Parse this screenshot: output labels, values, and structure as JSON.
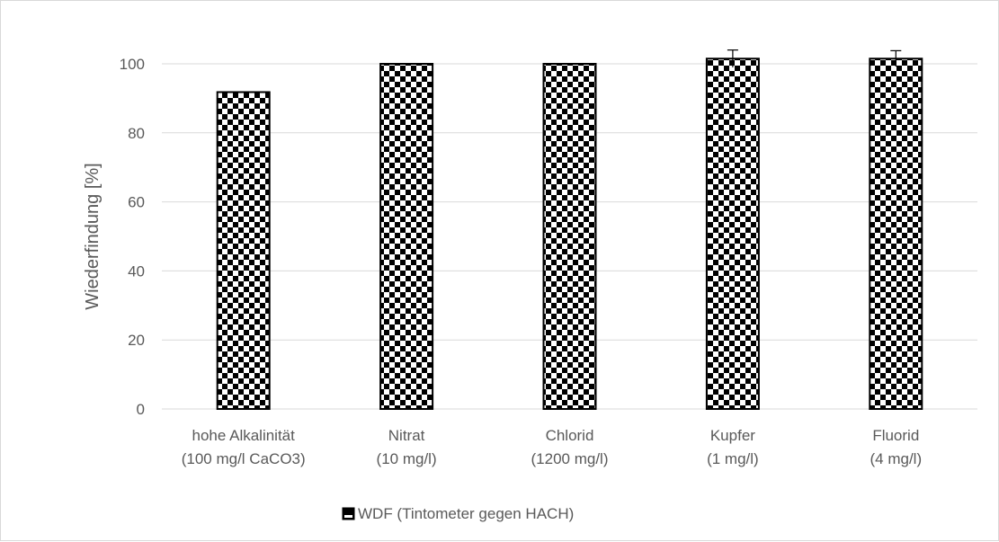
{
  "chart_data": {
    "type": "bar",
    "title": "",
    "xlabel": "",
    "ylabel": "Wiederfindung [%]",
    "ylim": [
      0,
      100
    ],
    "yticks": [
      0,
      20,
      40,
      60,
      80,
      100
    ],
    "grid": true,
    "legend_position": "bottom",
    "categories": [
      [
        "hohe Alkalinität",
        "(100 mg/l CaCO3)"
      ],
      [
        "Nitrat",
        "(10 mg/l)"
      ],
      [
        "Chlorid",
        "(1200 mg/l)"
      ],
      [
        "Kupfer",
        "(1 mg/l)"
      ],
      [
        "Fluorid",
        "(4 mg/l)"
      ]
    ],
    "series": [
      {
        "name": "WDF (Tintometer gegen HACH)",
        "values": [
          91.8,
          100.0,
          100.0,
          101.5,
          101.5
        ],
        "error": [
          0,
          0,
          0,
          2.5,
          2.3
        ],
        "fill": "checkerboard",
        "colors": [
          "#000000",
          "#ffffff"
        ]
      }
    ],
    "colors": {
      "grid": "#d9d9d9",
      "axis": "#d9d9d9",
      "text": "#595959"
    }
  }
}
